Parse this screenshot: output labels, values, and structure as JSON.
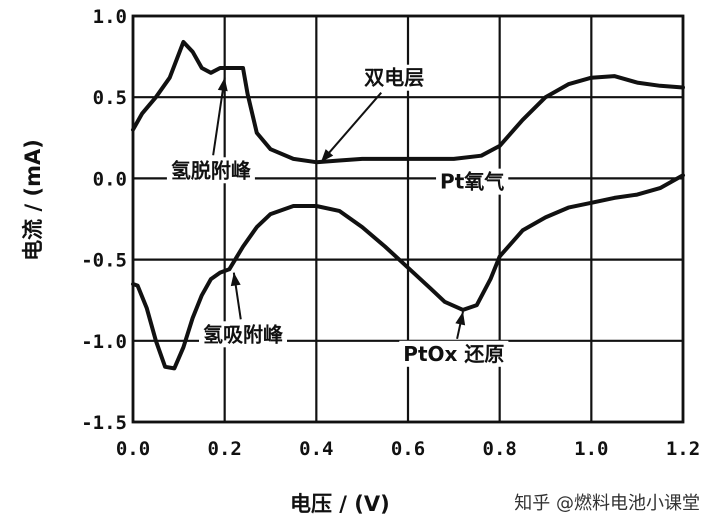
{
  "chart_data": {
    "type": "line",
    "xlabel": "电压 / (V)",
    "ylabel": "电流 / (mA)",
    "xlim": [
      0.0,
      1.2
    ],
    "ylim": [
      -1.5,
      1.0
    ],
    "x_ticks": [
      "0.0",
      "0.2",
      "0.4",
      "0.6",
      "0.8",
      "1.0",
      "1.2"
    ],
    "y_ticks": [
      "1.0",
      "0.5",
      "0.0",
      "-0.5",
      "-1.0",
      "-1.5"
    ],
    "grid": true,
    "series": [
      {
        "points": [
          [
            0.0,
            0.3
          ],
          [
            0.02,
            0.4
          ],
          [
            0.05,
            0.5
          ],
          [
            0.08,
            0.62
          ],
          [
            0.11,
            0.84
          ],
          [
            0.13,
            0.78
          ],
          [
            0.15,
            0.68
          ],
          [
            0.17,
            0.65
          ],
          [
            0.19,
            0.68
          ],
          [
            0.24,
            0.68
          ],
          [
            0.25,
            0.52
          ],
          [
            0.27,
            0.28
          ],
          [
            0.3,
            0.18
          ],
          [
            0.35,
            0.12
          ],
          [
            0.4,
            0.1
          ],
          [
            0.45,
            0.11
          ],
          [
            0.5,
            0.12
          ],
          [
            0.6,
            0.12
          ],
          [
            0.7,
            0.12
          ],
          [
            0.76,
            0.14
          ],
          [
            0.8,
            0.2
          ],
          [
            0.85,
            0.36
          ],
          [
            0.9,
            0.5
          ],
          [
            0.95,
            0.58
          ],
          [
            1.0,
            0.62
          ],
          [
            1.05,
            0.63
          ],
          [
            1.1,
            0.59
          ],
          [
            1.15,
            0.57
          ],
          [
            1.2,
            0.56
          ]
        ]
      },
      {
        "points": [
          [
            1.2,
            0.02
          ],
          [
            1.15,
            -0.06
          ],
          [
            1.1,
            -0.1
          ],
          [
            1.05,
            -0.12
          ],
          [
            1.0,
            -0.15
          ],
          [
            0.95,
            -0.18
          ],
          [
            0.9,
            -0.24
          ],
          [
            0.85,
            -0.32
          ],
          [
            0.8,
            -0.48
          ],
          [
            0.78,
            -0.62
          ],
          [
            0.75,
            -0.78
          ],
          [
            0.72,
            -0.81
          ],
          [
            0.68,
            -0.76
          ],
          [
            0.65,
            -0.68
          ],
          [
            0.6,
            -0.55
          ],
          [
            0.55,
            -0.42
          ],
          [
            0.5,
            -0.3
          ],
          [
            0.45,
            -0.2
          ],
          [
            0.4,
            -0.17
          ],
          [
            0.35,
            -0.17
          ],
          [
            0.3,
            -0.22
          ],
          [
            0.27,
            -0.3
          ],
          [
            0.24,
            -0.42
          ],
          [
            0.21,
            -0.56
          ],
          [
            0.19,
            -0.58
          ],
          [
            0.17,
            -0.62
          ],
          [
            0.15,
            -0.72
          ],
          [
            0.13,
            -0.86
          ],
          [
            0.11,
            -1.04
          ],
          [
            0.09,
            -1.17
          ],
          [
            0.07,
            -1.16
          ],
          [
            0.05,
            -1.0
          ],
          [
            0.03,
            -0.8
          ],
          [
            0.01,
            -0.66
          ],
          [
            0.0,
            -0.65
          ]
        ]
      }
    ],
    "annotations": [
      {
        "text": "双电层",
        "x": 0.57,
        "y": 0.62,
        "arrow_to": [
          0.41,
          0.1
        ]
      },
      {
        "text": "氢脱附峰",
        "x": 0.17,
        "y": 0.05,
        "arrow_to": [
          0.2,
          0.62
        ]
      },
      {
        "text": "Pt氧气",
        "x": 0.74,
        "y": -0.02
      },
      {
        "text": "氢吸附峰",
        "x": 0.24,
        "y": -0.96,
        "arrow_to": [
          0.22,
          -0.58
        ]
      },
      {
        "text": "PtOx 还原",
        "x": 0.7,
        "y": -1.08,
        "arrow_to": [
          0.72,
          -0.82
        ]
      }
    ]
  },
  "watermark": "知乎 @燃料电池小课堂"
}
